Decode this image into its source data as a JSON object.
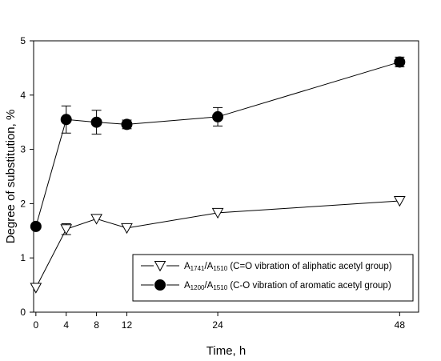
{
  "chart_data": {
    "type": "line",
    "title": "",
    "xlabel": "Time, h",
    "ylabel": "Degree of substitution, %",
    "xlim": [
      -0.3,
      50.5
    ],
    "ylim": [
      0,
      5
    ],
    "xticks": [
      0,
      4,
      8,
      12,
      24,
      48
    ],
    "yticks": [
      0,
      1,
      2,
      3,
      4,
      5
    ],
    "grid": false,
    "legend_position": "bottom-right",
    "series": [
      {
        "legend_main_a": "A",
        "legend_sub_a": "1741",
        "legend_main_b": "/A",
        "legend_sub_b": "1510",
        "legend_desc": " (C=O vibration of aliphatic acetyl group)",
        "marker": "triangle-down-open",
        "color": "#000000",
        "x": [
          0,
          4,
          8,
          12,
          24,
          48
        ],
        "y": [
          0.45,
          1.53,
          1.72,
          1.55,
          1.83,
          2.05
        ],
        "yerr": [
          0,
          0.1,
          0,
          0,
          0,
          0
        ]
      },
      {
        "legend_main_a": "A",
        "legend_sub_a": "1200",
        "legend_main_b": "/A",
        "legend_sub_b": "1510",
        "legend_desc": " (C-O vibration of aromatic acetyl group)",
        "marker": "circle-filled",
        "color": "#000000",
        "x": [
          0,
          4,
          8,
          12,
          24,
          48
        ],
        "y": [
          1.58,
          3.55,
          3.5,
          3.46,
          3.6,
          4.61
        ],
        "yerr": [
          0,
          0.25,
          0.22,
          0.08,
          0.17,
          0.09
        ]
      }
    ]
  }
}
